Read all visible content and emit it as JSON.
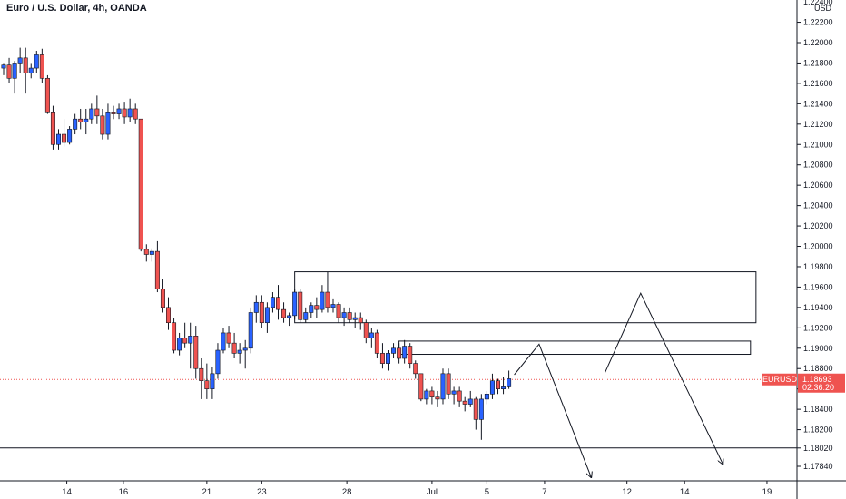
{
  "chart_data": {
    "type": "candlestick",
    "title": "Euro / U.S. Dollar, 4h, OANDA",
    "currency": "USD",
    "symbol": "EURUSD",
    "price_label": "1.18693",
    "countdown_label": "02:36:20",
    "current_price": 1.18693,
    "ylim": [
      1.1768,
      1.2242
    ],
    "y_ticks": [
      1.222,
      1.22,
      1.218,
      1.216,
      1.214,
      1.212,
      1.21,
      1.208,
      1.206,
      1.204,
      1.202,
      1.2,
      1.198,
      1.196,
      1.194,
      1.192,
      1.19,
      1.188,
      1.186,
      1.184,
      1.182,
      1.1802,
      1.1784
    ],
    "y_tick_labels": [
      "1.22200",
      "1.22000",
      "1.21800",
      "1.21600",
      "1.21400",
      "1.21200",
      "1.21000",
      "1.20800",
      "1.20600",
      "1.20400",
      "1.20200",
      "1.20000",
      "1.19800",
      "1.19600",
      "1.19400",
      "1.19200",
      "1.19000",
      "1.18800",
      "1.18600",
      "1.18400",
      "1.18200",
      "1.18020",
      "1.17840"
    ],
    "partial_top_tick": "1.22400",
    "x_ticks": [
      {
        "label": "14",
        "bar": 11.5
      },
      {
        "label": "16",
        "bar": 21.8
      },
      {
        "label": "21",
        "bar": 37
      },
      {
        "label": "23",
        "bar": 47
      },
      {
        "label": "28",
        "bar": 62.5
      },
      {
        "label": "Jul",
        "bar": 78
      },
      {
        "label": "5",
        "bar": 88
      },
      {
        "label": "7",
        "bar": 98.5
      },
      {
        "label": "12",
        "bar": 113.5
      },
      {
        "label": "14",
        "bar": 124
      },
      {
        "label": "19",
        "bar": 139
      }
    ],
    "colors": {
      "up": "#2962ff",
      "down": "#ef5350",
      "wick": "#131722",
      "line": "#131722",
      "price_tag": "#ef5350",
      "price_line": "#ef5350"
    },
    "candles": [
      [
        1.2175,
        1.218,
        1.2168,
        1.2178
      ],
      [
        1.2178,
        1.2185,
        1.216,
        1.2165
      ],
      [
        1.2165,
        1.2182,
        1.215,
        1.218
      ],
      [
        1.218,
        1.2195,
        1.217,
        1.2185
      ],
      [
        1.2185,
        1.2195,
        1.215,
        1.217
      ],
      [
        1.217,
        1.218,
        1.2165,
        1.2175
      ],
      [
        1.2175,
        1.2192,
        1.217,
        1.2188
      ],
      [
        1.2188,
        1.2194,
        1.216,
        1.2165
      ],
      [
        1.2165,
        1.2168,
        1.213,
        1.2132
      ],
      [
        1.2132,
        1.2138,
        1.2095,
        1.21
      ],
      [
        1.21,
        1.2115,
        1.2095,
        1.211
      ],
      [
        1.211,
        1.2125,
        1.2098,
        1.2102
      ],
      [
        1.2102,
        1.2118,
        1.21,
        1.2115
      ],
      [
        1.2115,
        1.213,
        1.211,
        1.2125
      ],
      [
        1.2125,
        1.2135,
        1.2115,
        1.2122
      ],
      [
        1.2122,
        1.2135,
        1.211,
        1.2125
      ],
      [
        1.2125,
        1.214,
        1.212,
        1.2135
      ],
      [
        1.2135,
        1.2148,
        1.212,
        1.2128
      ],
      [
        1.2128,
        1.2135,
        1.2105,
        1.211
      ],
      [
        1.211,
        1.214,
        1.2105,
        1.2132
      ],
      [
        1.2132,
        1.2138,
        1.2125,
        1.213
      ],
      [
        1.213,
        1.214,
        1.2125,
        1.2135
      ],
      [
        1.2135,
        1.2142,
        1.212,
        1.2127
      ],
      [
        1.2127,
        1.2145,
        1.2122,
        1.2135
      ],
      [
        1.2135,
        1.214,
        1.212,
        1.2125
      ],
      [
        1.2125,
        1.2125,
        1.1995,
        1.1997
      ],
      [
        1.1997,
        1.2002,
        1.1985,
        1.1992
      ],
      [
        1.1992,
        1.1998,
        1.1985,
        1.1995
      ],
      [
        1.1995,
        1.2005,
        1.1955,
        1.1958
      ],
      [
        1.1958,
        1.1968,
        1.1935,
        1.194
      ],
      [
        1.194,
        1.195,
        1.1918,
        1.1925
      ],
      [
        1.1925,
        1.193,
        1.1895,
        1.1898
      ],
      [
        1.1898,
        1.1915,
        1.1893,
        1.191
      ],
      [
        1.191,
        1.1925,
        1.19,
        1.1905
      ],
      [
        1.1905,
        1.1925,
        1.188,
        1.1912
      ],
      [
        1.1912,
        1.1922,
        1.187,
        1.188
      ],
      [
        1.188,
        1.189,
        1.185,
        1.1868
      ],
      [
        1.1868,
        1.1885,
        1.185,
        1.186
      ],
      [
        1.186,
        1.1882,
        1.185,
        1.1875
      ],
      [
        1.1875,
        1.1905,
        1.187,
        1.1898
      ],
      [
        1.1898,
        1.192,
        1.1895,
        1.1915
      ],
      [
        1.1915,
        1.1922,
        1.19,
        1.1905
      ],
      [
        1.1905,
        1.1915,
        1.189,
        1.1895
      ],
      [
        1.1895,
        1.1905,
        1.1885,
        1.1898
      ],
      [
        1.1898,
        1.1908,
        1.188,
        1.19
      ],
      [
        1.19,
        1.194,
        1.1895,
        1.1935
      ],
      [
        1.1935,
        1.1952,
        1.1925,
        1.1945
      ],
      [
        1.1945,
        1.1952,
        1.192,
        1.1925
      ],
      [
        1.1925,
        1.1945,
        1.1915,
        1.194
      ],
      [
        1.194,
        1.1955,
        1.1935,
        1.195
      ],
      [
        1.195,
        1.1962,
        1.1928,
        1.1938
      ],
      [
        1.1938,
        1.1945,
        1.1925,
        1.193
      ],
      [
        1.193,
        1.1935,
        1.1922,
        1.1932
      ],
      [
        1.1932,
        1.1958,
        1.1928,
        1.1955
      ],
      [
        1.1955,
        1.1958,
        1.1925,
        1.1928
      ],
      [
        1.1928,
        1.194,
        1.1925,
        1.1935
      ],
      [
        1.1935,
        1.1945,
        1.193,
        1.1942
      ],
      [
        1.1942,
        1.195,
        1.193,
        1.1938
      ],
      [
        1.1938,
        1.1962,
        1.1935,
        1.1955
      ],
      [
        1.1955,
        1.1975,
        1.1935,
        1.194
      ],
      [
        1.194,
        1.1948,
        1.1935,
        1.1943
      ],
      [
        1.1943,
        1.1945,
        1.1925,
        1.193
      ],
      [
        1.193,
        1.194,
        1.1922,
        1.1935
      ],
      [
        1.1935,
        1.194,
        1.1925,
        1.1928
      ],
      [
        1.1928,
        1.1935,
        1.192,
        1.193
      ],
      [
        1.193,
        1.1935,
        1.1918,
        1.1925
      ],
      [
        1.1925,
        1.1928,
        1.1905,
        1.191
      ],
      [
        1.191,
        1.192,
        1.19,
        1.1915
      ],
      [
        1.1915,
        1.1918,
        1.189,
        1.1895
      ],
      [
        1.1895,
        1.1905,
        1.188,
        1.1885
      ],
      [
        1.1885,
        1.1898,
        1.1878,
        1.1895
      ],
      [
        1.1895,
        1.1905,
        1.189,
        1.19
      ],
      [
        1.19,
        1.1905,
        1.1885,
        1.189
      ],
      [
        1.189,
        1.1908,
        1.1885,
        1.1902
      ],
      [
        1.1902,
        1.1905,
        1.188,
        1.1885
      ],
      [
        1.1885,
        1.1888,
        1.187,
        1.1875
      ],
      [
        1.1875,
        1.1875,
        1.1848,
        1.185
      ],
      [
        1.185,
        1.186,
        1.1845,
        1.1858
      ],
      [
        1.1858,
        1.1862,
        1.1845,
        1.1852
      ],
      [
        1.1852,
        1.1858,
        1.1842,
        1.185
      ],
      [
        1.185,
        1.188,
        1.1845,
        1.1875
      ],
      [
        1.1875,
        1.188,
        1.185,
        1.1855
      ],
      [
        1.1855,
        1.1862,
        1.1845,
        1.1858
      ],
      [
        1.1858,
        1.1862,
        1.1842,
        1.1848
      ],
      [
        1.1848,
        1.1852,
        1.1838,
        1.1845
      ],
      [
        1.1845,
        1.1858,
        1.1842,
        1.185
      ],
      [
        1.185,
        1.1852,
        1.182,
        1.183
      ],
      [
        1.183,
        1.1855,
        1.181,
        1.185
      ],
      [
        1.185,
        1.1858,
        1.1845,
        1.1855
      ],
      [
        1.1855,
        1.1875,
        1.185,
        1.1868
      ],
      [
        1.1868,
        1.187,
        1.1855,
        1.186
      ],
      [
        1.186,
        1.1872,
        1.1855,
        1.1862
      ],
      [
        1.1862,
        1.1878,
        1.186,
        1.187
      ]
    ],
    "annotations": [
      {
        "type": "rectangle",
        "from": {
          "bar": 53,
          "price": 1.1975
        },
        "to": {
          "bar": 137,
          "price": 1.1925
        }
      },
      {
        "type": "rectangle",
        "from": {
          "bar": 72,
          "price": 1.1907
        },
        "to": {
          "bar": 136,
          "price": 1.1894
        }
      },
      {
        "type": "polyline",
        "points": [
          {
            "bar": 93,
            "price": 1.1874
          },
          {
            "bar": 97.5,
            "price": 1.1904
          },
          {
            "bar": 107,
            "price": 1.1773
          }
        ],
        "arrow": true
      },
      {
        "type": "polyline",
        "points": [
          {
            "bar": 109.5,
            "price": 1.1876
          },
          {
            "bar": 116,
            "price": 1.1954
          },
          {
            "bar": 131,
            "price": 1.1786
          }
        ],
        "arrow": true
      },
      {
        "type": "hline",
        "price": 1.1802
      }
    ]
  }
}
